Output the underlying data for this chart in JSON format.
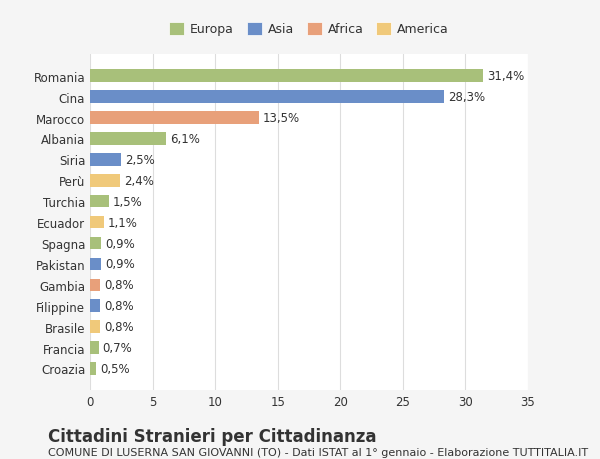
{
  "categories": [
    "Croazia",
    "Francia",
    "Brasile",
    "Filippine",
    "Gambia",
    "Pakistan",
    "Spagna",
    "Ecuador",
    "Turchia",
    "Perù",
    "Siria",
    "Albania",
    "Marocco",
    "Cina",
    "Romania"
  ],
  "values": [
    0.5,
    0.7,
    0.8,
    0.8,
    0.8,
    0.9,
    0.9,
    1.1,
    1.5,
    2.4,
    2.5,
    6.1,
    13.5,
    28.3,
    31.4
  ],
  "labels": [
    "0,5%",
    "0,7%",
    "0,8%",
    "0,8%",
    "0,8%",
    "0,9%",
    "0,9%",
    "1,1%",
    "1,5%",
    "2,4%",
    "2,5%",
    "6,1%",
    "13,5%",
    "28,3%",
    "31,4%"
  ],
  "colors": [
    "#a8c07a",
    "#a8c07a",
    "#f0c97a",
    "#6a8ec8",
    "#e8a07a",
    "#6a8ec8",
    "#a8c07a",
    "#f0c97a",
    "#a8c07a",
    "#f0c97a",
    "#6a8ec8",
    "#a8c07a",
    "#e8a07a",
    "#6a8ec8",
    "#a8c07a"
  ],
  "continent": [
    "Europa",
    "Europa",
    "America",
    "Asia",
    "Africa",
    "Asia",
    "Europa",
    "America",
    "Europa",
    "America",
    "Asia",
    "Europa",
    "Africa",
    "Asia",
    "Europa"
  ],
  "legend_labels": [
    "Europa",
    "Asia",
    "Africa",
    "America"
  ],
  "legend_colors": [
    "#a8c07a",
    "#6a8ec8",
    "#e8a07a",
    "#f0c97a"
  ],
  "title": "Cittadini Stranieri per Cittadinanza",
  "subtitle": "COMUNE DI LUSERNA SAN GIOVANNI (TO) - Dati ISTAT al 1° gennaio - Elaborazione TUTTITALIA.IT",
  "xlim": [
    0,
    35
  ],
  "xticks": [
    0,
    5,
    10,
    15,
    20,
    25,
    30,
    35
  ],
  "background_color": "#f5f5f5",
  "bar_background": "#ffffff",
  "grid_color": "#dddddd",
  "text_color": "#333333",
  "title_fontsize": 12,
  "subtitle_fontsize": 8,
  "label_fontsize": 8.5,
  "tick_fontsize": 8.5,
  "legend_fontsize": 9
}
